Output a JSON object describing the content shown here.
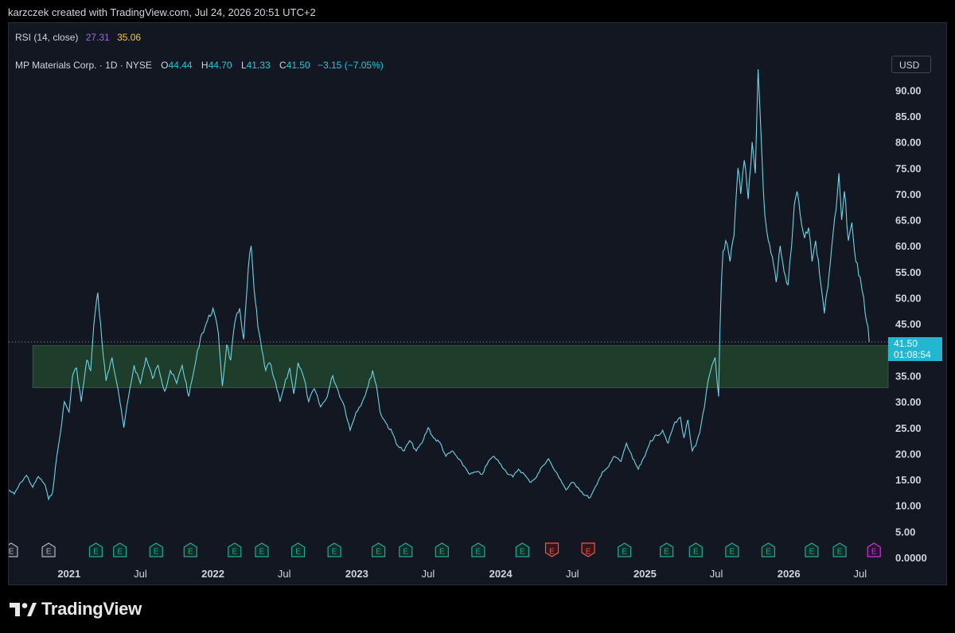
{
  "header": {
    "credit": "karzczek created with TradingView.com, Jul 24, 2026 20:51 UTC+2"
  },
  "rsi": {
    "name": "RSI (14, close)",
    "value": "27.31",
    "ma_value": "35.06"
  },
  "symbol": {
    "name": "MP Materials Corp. · 1D · NYSE",
    "o_label": "O",
    "o": "44.44",
    "h_label": "H",
    "h": "44.70",
    "l_label": "L",
    "l": "41.33",
    "c_label": "C",
    "c": "41.50",
    "change": "−3.15 (−7.05%)"
  },
  "currency_button": "USD",
  "last_price": {
    "price": "41.50",
    "countdown": "01:08:54"
  },
  "footer": {
    "brand": "TradingView",
    "logo_icon": "tradingview-logo-icon"
  },
  "colors": {
    "line": "#6fd3e6",
    "zone": "#1e3d2b",
    "earnings_green": "#26a69a",
    "earnings_red": "#ef5350",
    "earnings_upcoming": "#c13ad6",
    "price_tag": "#22b6d0"
  },
  "chart_data": {
    "type": "line",
    "title": "MP Materials Corp. · 1D · NYSE",
    "ylim": [
      0,
      97
    ],
    "y_ticks": [
      "90.00",
      "85.00",
      "80.00",
      "75.00",
      "70.00",
      "65.00",
      "60.00",
      "55.00",
      "50.00",
      "45.00",
      "35.00",
      "30.00",
      "25.00",
      "20.00",
      "15.00",
      "10.00",
      "5.00",
      "0.0000"
    ],
    "x_ticks": [
      "2021",
      "Jul",
      "2022",
      "Jul",
      "2023",
      "Jul",
      "2024",
      "Jul",
      "2025",
      "Jul",
      "2026",
      "Jul"
    ],
    "x_tick_dates": [
      "2021-01-01",
      "2021-07-01",
      "2022-01-01",
      "2022-07-01",
      "2023-01-01",
      "2023-07-01",
      "2024-01-01",
      "2024-07-01",
      "2025-01-01",
      "2025-07-01",
      "2026-01-01",
      "2026-07-01"
    ],
    "year_ticks": [
      "2021",
      "2022",
      "2023",
      "2024",
      "2025",
      "2026"
    ],
    "x_range": [
      "2020-08-01",
      "2026-09-10"
    ],
    "grid": false,
    "zone": {
      "y_from": 32.7,
      "y_to": 40.8,
      "x_from": "2020-10-01",
      "x_to": "2026-09-10"
    },
    "series": [
      {
        "points": [
          [
            "2020-08-01",
            13.0
          ],
          [
            "2020-08-15",
            12.2
          ],
          [
            "2020-09-01",
            14.5
          ],
          [
            "2020-09-15",
            15.8
          ],
          [
            "2020-10-01",
            13.5
          ],
          [
            "2020-10-15",
            15.6
          ],
          [
            "2020-11-01",
            14.0
          ],
          [
            "2020-11-10",
            11.2
          ],
          [
            "2020-11-20",
            12.5
          ],
          [
            "2020-12-01",
            19.5
          ],
          [
            "2020-12-10",
            24.0
          ],
          [
            "2020-12-20",
            30.0
          ],
          [
            "2021-01-01",
            28.0
          ],
          [
            "2021-01-10",
            35.0
          ],
          [
            "2021-01-20",
            36.5
          ],
          [
            "2021-02-01",
            30.0
          ],
          [
            "2021-02-15",
            38.0
          ],
          [
            "2021-02-25",
            36.0
          ],
          [
            "2021-03-05",
            45.0
          ],
          [
            "2021-03-15",
            51.0
          ],
          [
            "2021-03-25",
            42.0
          ],
          [
            "2021-04-05",
            34.0
          ],
          [
            "2021-04-20",
            38.5
          ],
          [
            "2021-05-01",
            34.0
          ],
          [
            "2021-05-10",
            30.0
          ],
          [
            "2021-05-20",
            25.0
          ],
          [
            "2021-06-01",
            31.0
          ],
          [
            "2021-06-15",
            37.0
          ],
          [
            "2021-07-01",
            33.5
          ],
          [
            "2021-07-15",
            38.5
          ],
          [
            "2021-08-01",
            34.5
          ],
          [
            "2021-08-15",
            37.0
          ],
          [
            "2021-09-01",
            32.0
          ],
          [
            "2021-09-15",
            36.0
          ],
          [
            "2021-10-01",
            33.5
          ],
          [
            "2021-10-15",
            37.0
          ],
          [
            "2021-11-01",
            31.0
          ],
          [
            "2021-11-15",
            36.5
          ],
          [
            "2021-12-01",
            42.5
          ],
          [
            "2021-12-15",
            45.0
          ],
          [
            "2022-01-01",
            48.0
          ],
          [
            "2022-01-15",
            43.0
          ],
          [
            "2022-01-25",
            33.0
          ],
          [
            "2022-02-05",
            41.0
          ],
          [
            "2022-02-15",
            38.0
          ],
          [
            "2022-02-25",
            45.0
          ],
          [
            "2022-03-10",
            48.0
          ],
          [
            "2022-03-20",
            42.0
          ],
          [
            "2022-04-01",
            56.0
          ],
          [
            "2022-04-08",
            60.0
          ],
          [
            "2022-04-15",
            52.0
          ],
          [
            "2022-04-25",
            44.5
          ],
          [
            "2022-05-05",
            40.0
          ],
          [
            "2022-05-15",
            36.0
          ],
          [
            "2022-05-25",
            37.5
          ],
          [
            "2022-06-05",
            34.5
          ],
          [
            "2022-06-20",
            30.0
          ],
          [
            "2022-07-01",
            33.0
          ],
          [
            "2022-07-15",
            36.5
          ],
          [
            "2022-07-25",
            31.5
          ],
          [
            "2022-08-05",
            37.5
          ],
          [
            "2022-08-20",
            34.5
          ],
          [
            "2022-09-01",
            30.0
          ],
          [
            "2022-09-15",
            32.5
          ],
          [
            "2022-10-01",
            29.0
          ],
          [
            "2022-10-15",
            30.5
          ],
          [
            "2022-11-01",
            35.0
          ],
          [
            "2022-11-15",
            32.0
          ],
          [
            "2022-12-01",
            29.0
          ],
          [
            "2022-12-15",
            24.5
          ],
          [
            "2022-12-30",
            28.0
          ],
          [
            "2023-01-15",
            30.0
          ],
          [
            "2023-01-30",
            33.0
          ],
          [
            "2023-02-10",
            36.0
          ],
          [
            "2023-02-20",
            33.0
          ],
          [
            "2023-03-01",
            28.0
          ],
          [
            "2023-03-15",
            26.0
          ],
          [
            "2023-04-01",
            24.0
          ],
          [
            "2023-04-15",
            21.5
          ],
          [
            "2023-05-01",
            20.5
          ],
          [
            "2023-05-15",
            22.5
          ],
          [
            "2023-06-01",
            20.5
          ],
          [
            "2023-06-15",
            22.0
          ],
          [
            "2023-07-01",
            25.0
          ],
          [
            "2023-07-15",
            23.0
          ],
          [
            "2023-08-01",
            22.0
          ],
          [
            "2023-08-15",
            19.5
          ],
          [
            "2023-09-01",
            20.5
          ],
          [
            "2023-09-15",
            19.0
          ],
          [
            "2023-10-01",
            17.5
          ],
          [
            "2023-10-15",
            16.0
          ],
          [
            "2023-11-01",
            16.5
          ],
          [
            "2023-11-15",
            16.0
          ],
          [
            "2023-12-01",
            18.5
          ],
          [
            "2023-12-15",
            19.5
          ],
          [
            "2024-01-01",
            18.0
          ],
          [
            "2024-01-15",
            16.5
          ],
          [
            "2024-02-01",
            15.5
          ],
          [
            "2024-02-15",
            17.0
          ],
          [
            "2024-03-01",
            16.0
          ],
          [
            "2024-03-15",
            14.5
          ],
          [
            "2024-04-01",
            15.5
          ],
          [
            "2024-04-15",
            17.5
          ],
          [
            "2024-05-01",
            19.0
          ],
          [
            "2024-05-15",
            17.0
          ],
          [
            "2024-06-01",
            15.0
          ],
          [
            "2024-06-15",
            13.0
          ],
          [
            "2024-07-01",
            14.5
          ],
          [
            "2024-07-15",
            13.5
          ],
          [
            "2024-08-01",
            12.0
          ],
          [
            "2024-08-15",
            11.5
          ],
          [
            "2024-09-01",
            14.0
          ],
          [
            "2024-09-15",
            16.5
          ],
          [
            "2024-10-01",
            17.5
          ],
          [
            "2024-10-15",
            19.5
          ],
          [
            "2024-11-01",
            18.5
          ],
          [
            "2024-11-15",
            22.0
          ],
          [
            "2024-12-01",
            19.0
          ],
          [
            "2024-12-15",
            17.0
          ],
          [
            "2025-01-01",
            19.5
          ],
          [
            "2025-01-15",
            22.5
          ],
          [
            "2025-02-01",
            23.5
          ],
          [
            "2025-02-15",
            24.5
          ],
          [
            "2025-03-01",
            22.0
          ],
          [
            "2025-03-15",
            25.5
          ],
          [
            "2025-04-01",
            27.0
          ],
          [
            "2025-04-10",
            23.0
          ],
          [
            "2025-04-20",
            26.5
          ],
          [
            "2025-05-01",
            20.5
          ],
          [
            "2025-05-10",
            21.5
          ],
          [
            "2025-05-20",
            24.0
          ],
          [
            "2025-06-01",
            29.0
          ],
          [
            "2025-06-10",
            34.0
          ],
          [
            "2025-06-20",
            37.0
          ],
          [
            "2025-06-28",
            38.5
          ],
          [
            "2025-07-03",
            34.0
          ],
          [
            "2025-07-07",
            31.0
          ],
          [
            "2025-07-10",
            43.0
          ],
          [
            "2025-07-14",
            53.0
          ],
          [
            "2025-07-18",
            59.0
          ],
          [
            "2025-07-25",
            61.0
          ],
          [
            "2025-08-05",
            57.0
          ],
          [
            "2025-08-15",
            62.0
          ],
          [
            "2025-08-25",
            75.0
          ],
          [
            "2025-09-01",
            70.0
          ],
          [
            "2025-09-10",
            76.5
          ],
          [
            "2025-09-20",
            69.0
          ],
          [
            "2025-09-30",
            80.0
          ],
          [
            "2025-10-08",
            74.0
          ],
          [
            "2025-10-15",
            94.0
          ],
          [
            "2025-10-20",
            86.0
          ],
          [
            "2025-10-25",
            77.0
          ],
          [
            "2025-11-01",
            66.0
          ],
          [
            "2025-11-10",
            61.0
          ],
          [
            "2025-11-20",
            58.0
          ],
          [
            "2025-11-30",
            53.0
          ],
          [
            "2025-12-10",
            60.0
          ],
          [
            "2025-12-20",
            55.0
          ],
          [
            "2025-12-30",
            52.5
          ],
          [
            "2026-01-08",
            60.0
          ],
          [
            "2026-01-15",
            68.0
          ],
          [
            "2026-01-22",
            70.5
          ],
          [
            "2026-01-30",
            66.0
          ],
          [
            "2026-02-10",
            61.5
          ],
          [
            "2026-02-20",
            63.5
          ],
          [
            "2026-03-01",
            57.0
          ],
          [
            "2026-03-10",
            61.0
          ],
          [
            "2026-03-20",
            54.5
          ],
          [
            "2026-04-01",
            47.0
          ],
          [
            "2026-04-10",
            52.0
          ],
          [
            "2026-04-20",
            60.0
          ],
          [
            "2026-05-01",
            67.0
          ],
          [
            "2026-05-08",
            74.0
          ],
          [
            "2026-05-15",
            65.0
          ],
          [
            "2026-05-22",
            70.5
          ],
          [
            "2026-06-01",
            61.0
          ],
          [
            "2026-06-10",
            64.5
          ],
          [
            "2026-06-20",
            57.0
          ],
          [
            "2026-07-01",
            54.0
          ],
          [
            "2026-07-10",
            50.0
          ],
          [
            "2026-07-17",
            45.5
          ],
          [
            "2026-07-21",
            44.4
          ],
          [
            "2026-07-24",
            41.5
          ]
        ]
      }
    ],
    "earnings_markers": [
      {
        "date": "2020-08-07",
        "label": "E",
        "kind": "gray"
      },
      {
        "date": "2020-11-10",
        "label": "E",
        "kind": "gray"
      },
      {
        "date": "2021-03-10",
        "label": "E",
        "kind": "green"
      },
      {
        "date": "2021-05-10",
        "label": "E",
        "kind": "green"
      },
      {
        "date": "2021-08-10",
        "label": "E",
        "kind": "green"
      },
      {
        "date": "2021-11-05",
        "label": "E",
        "kind": "green"
      },
      {
        "date": "2022-02-25",
        "label": "E",
        "kind": "green"
      },
      {
        "date": "2022-05-05",
        "label": "E",
        "kind": "green"
      },
      {
        "date": "2022-08-05",
        "label": "E",
        "kind": "green"
      },
      {
        "date": "2022-11-05",
        "label": "E",
        "kind": "green"
      },
      {
        "date": "2023-02-25",
        "label": "E",
        "kind": "green"
      },
      {
        "date": "2023-05-05",
        "label": "E",
        "kind": "green"
      },
      {
        "date": "2023-08-05",
        "label": "E",
        "kind": "green"
      },
      {
        "date": "2023-11-05",
        "label": "E",
        "kind": "green"
      },
      {
        "date": "2024-02-25",
        "label": "E",
        "kind": "green"
      },
      {
        "date": "2024-05-10",
        "label": "E",
        "kind": "red"
      },
      {
        "date": "2024-08-10",
        "label": "E",
        "kind": "red"
      },
      {
        "date": "2024-11-10",
        "label": "E",
        "kind": "green"
      },
      {
        "date": "2025-02-25",
        "label": "E",
        "kind": "green"
      },
      {
        "date": "2025-05-10",
        "label": "E",
        "kind": "green"
      },
      {
        "date": "2025-08-10",
        "label": "E",
        "kind": "green"
      },
      {
        "date": "2025-11-10",
        "label": "E",
        "kind": "green"
      },
      {
        "date": "2026-02-28",
        "label": "E",
        "kind": "green"
      },
      {
        "date": "2026-05-10",
        "label": "E",
        "kind": "green"
      },
      {
        "date": "2026-08-05",
        "label": "E",
        "kind": "upcoming"
      }
    ]
  }
}
